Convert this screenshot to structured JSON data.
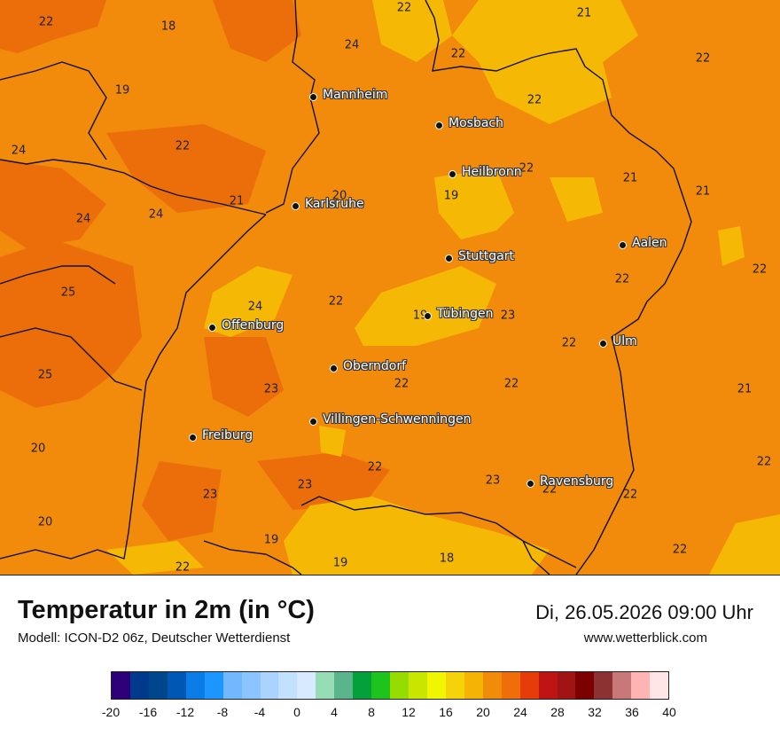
{
  "title": "Temperatur in 2m (in °C)",
  "subtitle": "Modell: ICON-D2 06z, Deutscher Wetterdienst",
  "datetime": "Di, 26.05.2026 09:00 Uhr",
  "site": "www.wetterblick.com",
  "cities": [
    {
      "name": "Mannheim"
    },
    {
      "name": "Mosbach"
    },
    {
      "name": "Heilbronn"
    },
    {
      "name": "Karlsruhe"
    },
    {
      "name": "Stuttgart"
    },
    {
      "name": "Aalen"
    },
    {
      "name": "Tübingen"
    },
    {
      "name": "Offenburg"
    },
    {
      "name": "Ulm"
    },
    {
      "name": "Oberndorf"
    },
    {
      "name": "Villingen-Schwenningen"
    },
    {
      "name": "Freiburg"
    },
    {
      "name": "Ravensburg"
    }
  ],
  "values": [
    "22",
    "18",
    "22",
    "21",
    "24",
    "22",
    "22",
    "19",
    "22",
    "24",
    "22",
    "22",
    "21",
    "21",
    "24",
    "24",
    "21",
    "20",
    "19",
    "22",
    "22",
    "25",
    "24",
    "22",
    "19",
    "23",
    "22",
    "25",
    "22",
    "21",
    "23",
    "22",
    "22",
    "20",
    "22",
    "23",
    "23",
    "23",
    "22",
    "22",
    "20",
    "19",
    "18",
    "19",
    "22",
    "22"
  ],
  "legend": {
    "colors": [
      "#2d007a",
      "#003a8c",
      "#00468c",
      "#0058b4",
      "#0a7ee6",
      "#1e96ff",
      "#72b8ff",
      "#8cc4ff",
      "#aad4ff",
      "#c2e0ff",
      "#d8eaff",
      "#96dcb4",
      "#5ab48c",
      "#04a03c",
      "#1ec31e",
      "#96dc00",
      "#c8e600",
      "#f0f500",
      "#f5d20a",
      "#f5b405",
      "#f08c0a",
      "#f06e0a",
      "#e63c0a",
      "#be1414",
      "#a01414",
      "#7d0000",
      "#8c3232",
      "#c87878",
      "#ffb4b4",
      "#ffe6e6"
    ],
    "ticks": [
      "-20",
      "-16",
      "-12",
      "-8",
      "-4",
      "0",
      "4",
      "8",
      "12",
      "16",
      "20",
      "24",
      "28",
      "32",
      "36",
      "40"
    ]
  }
}
